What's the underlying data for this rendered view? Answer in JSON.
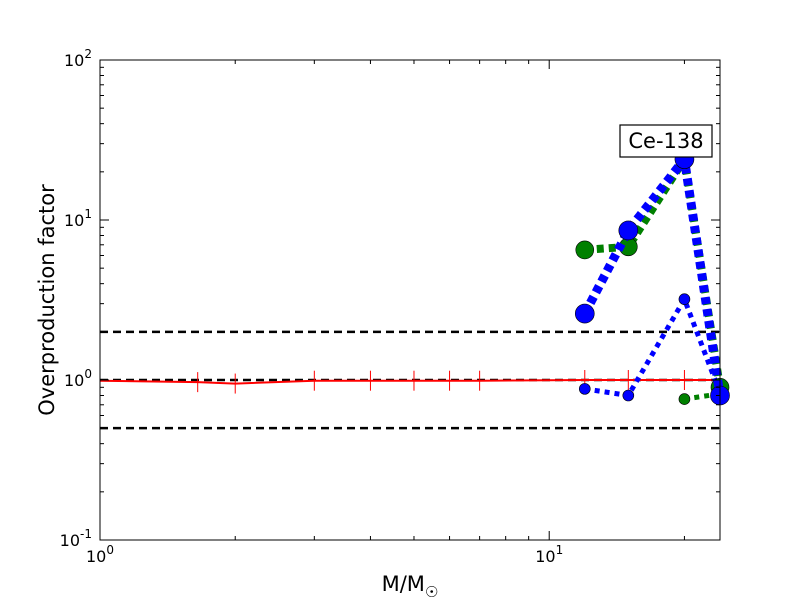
{
  "chart_data": {
    "type": "line",
    "x_scale": "log",
    "y_scale": "log",
    "xlim": [
      1,
      24
    ],
    "ylim": [
      0.1,
      100
    ],
    "xlabel": "M/M",
    "xlabel_symbol": "☉",
    "ylabel": "Overproduction factor",
    "x_ticks": [
      {
        "value": 1,
        "base": "10",
        "exp": "0"
      },
      {
        "value": 10,
        "base": "10",
        "exp": "1"
      }
    ],
    "y_ticks": [
      {
        "value": 0.1,
        "base": "10",
        "exp": "-1"
      },
      {
        "value": 1,
        "base": "10",
        "exp": "0"
      },
      {
        "value": 10,
        "base": "10",
        "exp": "1"
      },
      {
        "value": 100,
        "base": "10",
        "exp": "2"
      }
    ],
    "annotation": "Ce-138",
    "reference_lines": [
      0.5,
      1,
      2
    ],
    "series": [
      {
        "style": "red-solid",
        "color": "#ff0000",
        "x": [
          1,
          1.65,
          2,
          3,
          4,
          5,
          6,
          7,
          12,
          15,
          20,
          24
        ],
        "y": [
          0.99,
          0.97,
          0.95,
          0.99,
          0.99,
          0.99,
          0.99,
          0.99,
          1.0,
          1.0,
          1.0,
          1.0
        ]
      },
      {
        "style": "blue-dotted-thin",
        "color": "#0000ff",
        "x": [
          12,
          15,
          20,
          24
        ],
        "y": [
          0.88,
          0.8,
          3.2,
          0.83
        ]
      },
      {
        "style": "green-dotted-thin",
        "color": "#008000",
        "x": [
          20,
          24
        ],
        "y": [
          0.76,
          0.82
        ]
      },
      {
        "style": "green-dotted-thick",
        "color": "#008000",
        "x": [
          12,
          15,
          20,
          24
        ],
        "y": [
          6.5,
          6.8,
          24,
          0.9
        ]
      },
      {
        "style": "blue-dotted-thick",
        "color": "#0000ff",
        "x": [
          12,
          15,
          20,
          24
        ],
        "y": [
          2.6,
          8.6,
          24,
          0.8
        ]
      }
    ]
  }
}
